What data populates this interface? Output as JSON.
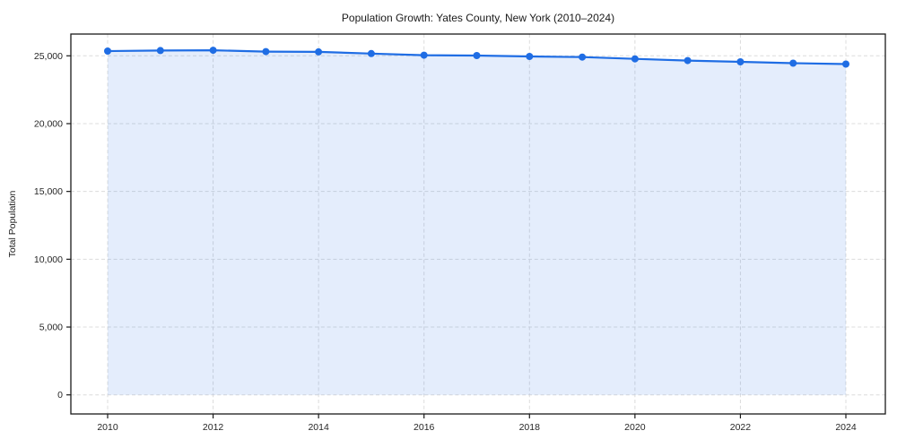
{
  "title": "Population Growth: Yates County, New York (2010–2024)",
  "chart_data": {
    "type": "line",
    "title": "Population Growth: Yates County, New York (2010–2024)",
    "xlabel": "",
    "ylabel": "Total Population",
    "x": [
      2010,
      2011,
      2012,
      2013,
      2014,
      2015,
      2016,
      2017,
      2018,
      2019,
      2020,
      2021,
      2022,
      2023,
      2024
    ],
    "series": [
      {
        "name": "Total Population",
        "values": [
          25348,
          25393,
          25407,
          25310,
          25292,
          25168,
          25047,
          25019,
          24951,
          24907,
          24774,
          24653,
          24556,
          24460,
          24395
        ]
      }
    ],
    "x_ticks": [
      2010,
      2012,
      2014,
      2016,
      2018,
      2020,
      2022,
      2024
    ],
    "y_ticks": [
      0,
      5000,
      10000,
      15000,
      20000,
      25000
    ],
    "y_tick_labels": [
      "0",
      "5,000",
      "10,000",
      "15,000",
      "20,000",
      "25,000"
    ],
    "ylim": [
      0,
      25000
    ],
    "grid": true,
    "grid_style": "dashed",
    "legend": false,
    "marker": "circle",
    "colors": {
      "line": "#1f6de4",
      "marker": "#1f6de4",
      "fill": "rgba(31,109,228,0.12)",
      "grid": "#dcdcdc",
      "axis": "#1a1a1a",
      "text": "#262626",
      "background": "#ffffff"
    }
  }
}
